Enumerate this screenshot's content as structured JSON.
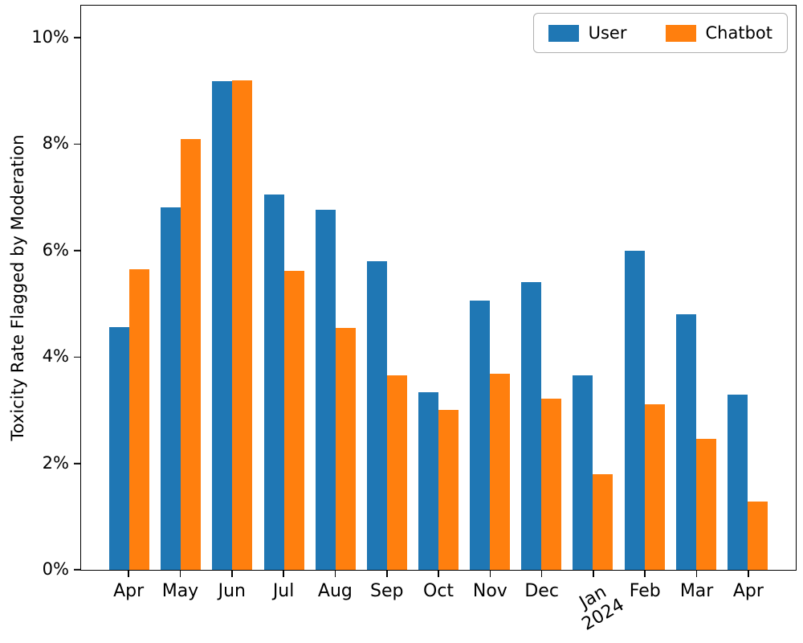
{
  "chart_data": {
    "type": "bar",
    "title": "",
    "xlabel": "",
    "ylabel": "Toxicity Rate Flagged by Moderation",
    "categories": [
      "Apr",
      "May",
      "Jun",
      "Jul",
      "Aug",
      "Sep",
      "Oct",
      "Nov",
      "Dec",
      "Jan\n2024",
      "Feb",
      "Mar",
      "Apr"
    ],
    "series": [
      {
        "name": "User",
        "color": "#1f77b4",
        "values": [
          4.56,
          6.81,
          9.18,
          7.05,
          6.77,
          5.8,
          3.34,
          5.06,
          5.41,
          3.65,
          6.0,
          4.8,
          3.29
        ]
      },
      {
        "name": "Chatbot",
        "color": "#ff7f0e",
        "values": [
          5.64,
          8.09,
          9.2,
          5.62,
          4.54,
          3.65,
          3.0,
          3.68,
          3.22,
          1.8,
          3.11,
          2.46,
          1.28
        ]
      }
    ],
    "ylim": [
      0,
      10.6
    ],
    "yticks": [
      0,
      2,
      4,
      6,
      8,
      10
    ],
    "ytick_labels": [
      "0%",
      "2%",
      "4%",
      "6%",
      "8%",
      "10%"
    ],
    "legend_position": "upper right",
    "legend_orientation": "horizontal",
    "grid": false
  }
}
